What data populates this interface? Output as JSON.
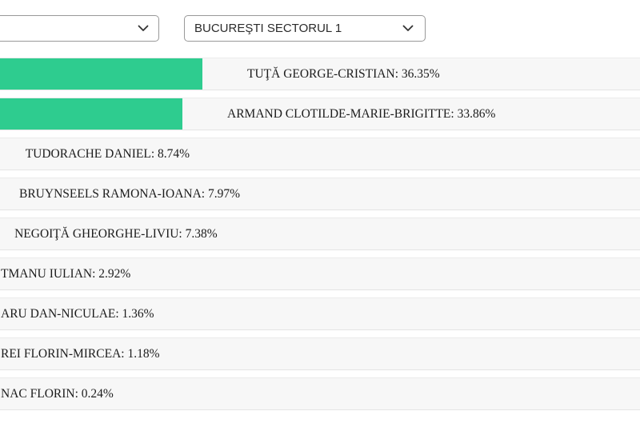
{
  "filters": {
    "county": {
      "value": ""
    },
    "locality": {
      "value": "BUCUREŞTI SECTORUL 1"
    }
  },
  "chart_data": {
    "type": "bar",
    "orientation": "horizontal",
    "value_unit": "%",
    "bar_color": "#2ecc8f",
    "row_background": "#f7f7f7",
    "axes_hidden": true,
    "left_edge_cropped": true,
    "bars": [
      {
        "label": "TUŢĂ GEORGE-CRISTIAN",
        "value": 36.35,
        "text": "TUŢĂ GEORGE-CRISTIAN: 36.35%",
        "label_clipped_left": false
      },
      {
        "label": "ARMAND CLOTILDE-MARIE-BRIGITTE",
        "value": 33.86,
        "text": "ARMAND CLOTILDE-MARIE-BRIGITTE: 33.86%",
        "label_clipped_left": false
      },
      {
        "label": "TUDORACHE DANIEL",
        "value": 8.74,
        "text": "TUDORACHE DANIEL: 8.74%",
        "label_clipped_left": false
      },
      {
        "label": "BRUYNSEELS RAMONA-IOANA",
        "value": 7.97,
        "text": "BRUYNSEELS RAMONA-IOANA: 7.97%",
        "label_clipped_left": false
      },
      {
        "label": "NEGOIŢĂ GHEORGHE-LIVIU",
        "value": 7.38,
        "text": "NEGOIŢĂ GHEORGHE-LIVIU: 7.38%",
        "label_clipped_left": false
      },
      {
        "label": "TMANU IULIAN",
        "value": 2.92,
        "text": "TMANU IULIAN: 2.92%",
        "label_clipped_left": true
      },
      {
        "label": "ARU DAN-NICULAE",
        "value": 1.36,
        "text": "ARU DAN-NICULAE: 1.36%",
        "label_clipped_left": true
      },
      {
        "label": "REI FLORIN-MIRCEA",
        "value": 1.18,
        "text": "REI FLORIN-MIRCEA: 1.18%",
        "label_clipped_left": true
      },
      {
        "label": "NAC FLORIN",
        "value": 0.24,
        "text": "NAC FLORIN: 0.24%",
        "label_clipped_left": true
      }
    ]
  }
}
